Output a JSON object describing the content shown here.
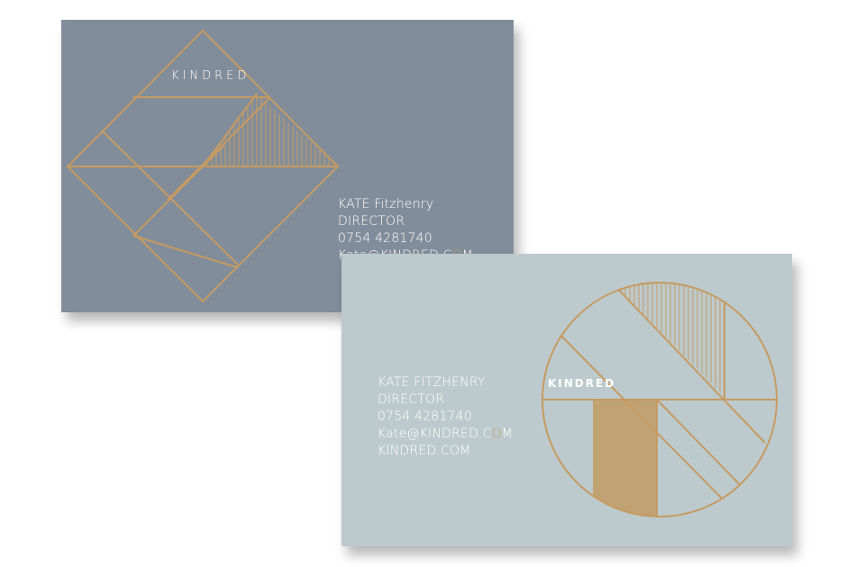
{
  "colors": {
    "front_card": "#818d9a",
    "back_card": "#bccacd",
    "gold": "#c79a61",
    "text": "#ffffff"
  },
  "front_card": {
    "brand": "KINDRED",
    "name": "KATE Fitzhenry",
    "title": "DIRECTOR",
    "phone": "0754 4281740",
    "email_prefix": "Kate@KINDRED.C",
    "email_accent": "O",
    "email_suffix": "M"
  },
  "back_card": {
    "brand": "KINDRED",
    "name": "KATE FITZHENRY",
    "title": "DIRECTOR",
    "phone": "0754 4281740",
    "email_prefix": "Kate@KINDRED.C",
    "email_accent": "O",
    "email_suffix": "M",
    "website": "KINDRED.COM"
  }
}
